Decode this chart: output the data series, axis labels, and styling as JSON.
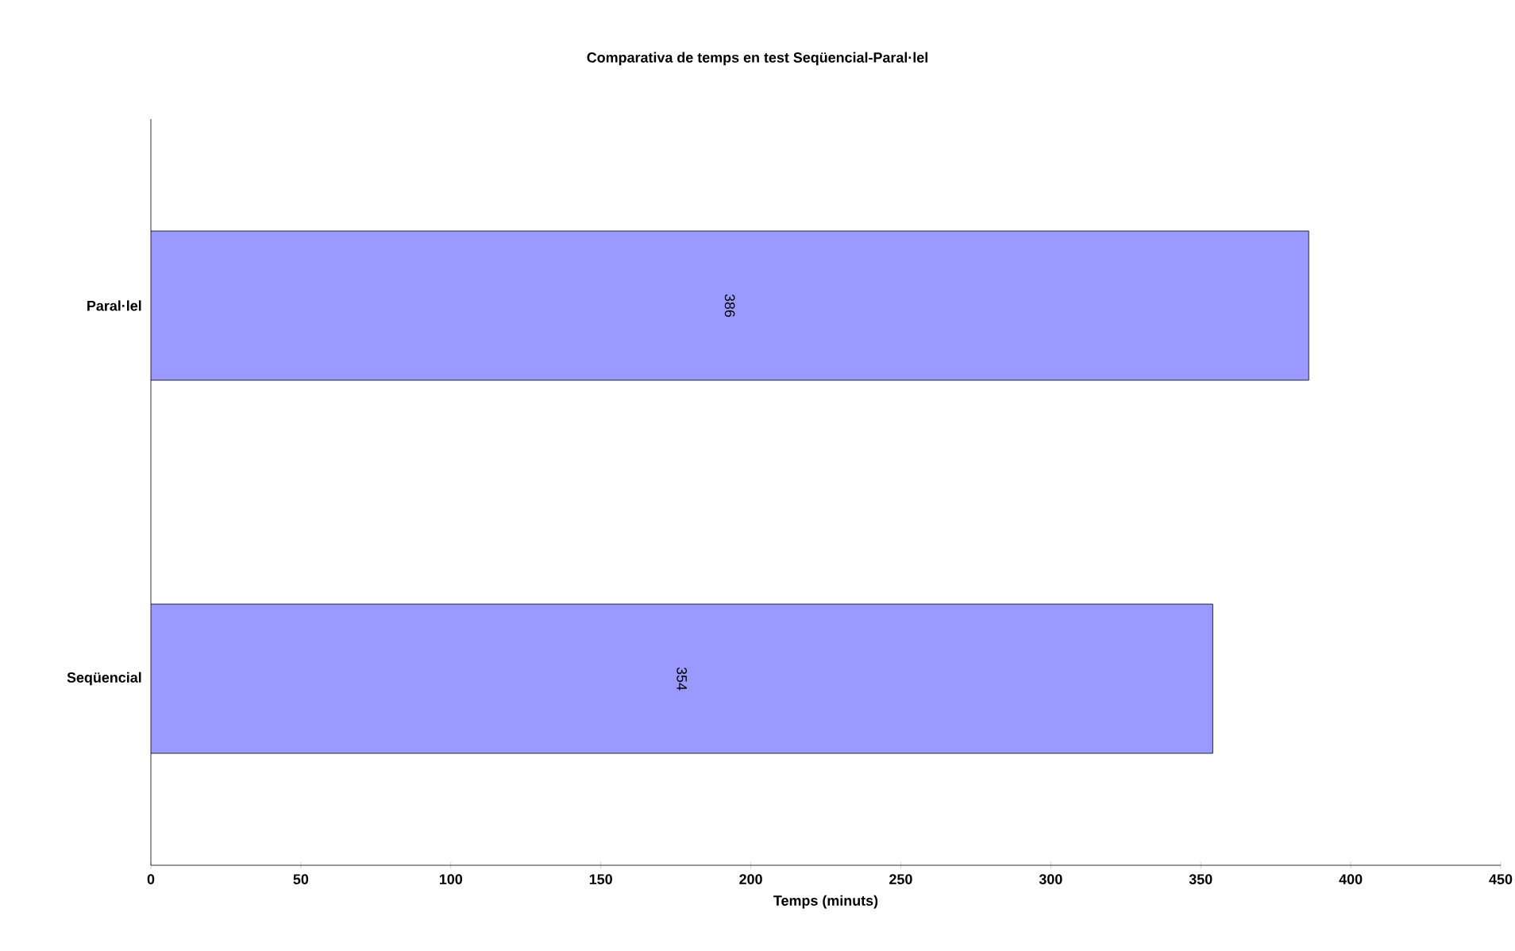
{
  "chart_data": {
    "type": "bar",
    "orientation": "horizontal",
    "title": "Comparativa de temps en test Seqüencial-Paral·lel",
    "xlabel": "Temps (minuts)",
    "categories": [
      "Paral·lel",
      "Seqüencial"
    ],
    "values": [
      386,
      354
    ],
    "color": "#9999ff",
    "xlim": [
      0,
      450
    ],
    "xticks": [
      0,
      50,
      100,
      150,
      200,
      250,
      300,
      350,
      400,
      450
    ],
    "data_labels": true
  }
}
